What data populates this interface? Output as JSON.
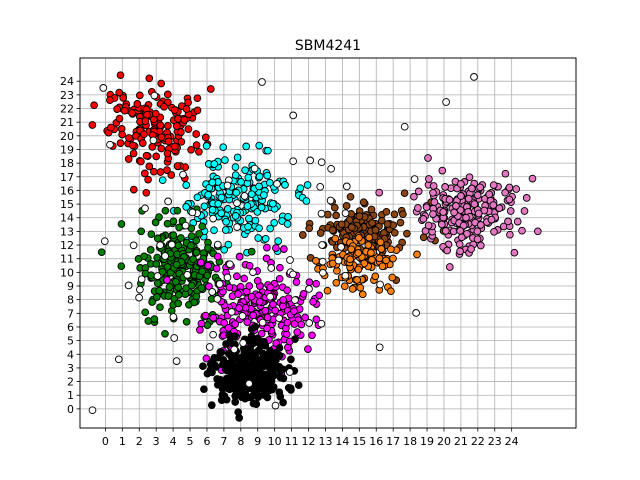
{
  "chart_data": {
    "type": "scatter",
    "title": "SBM4241",
    "xlabel": "",
    "ylabel": "",
    "xlim": [
      -1.5,
      27.8
    ],
    "ylim": [
      -1.4,
      25.7
    ],
    "x_ticks": [
      0,
      1,
      2,
      3,
      4,
      5,
      6,
      7,
      8,
      9,
      10,
      11,
      12,
      13,
      14,
      15,
      16,
      17,
      18,
      19,
      20,
      21,
      22,
      23,
      24
    ],
    "y_ticks": [
      0,
      1,
      2,
      3,
      4,
      5,
      6,
      7,
      8,
      9,
      10,
      11,
      12,
      13,
      14,
      15,
      16,
      17,
      18,
      19,
      20,
      21,
      22,
      23,
      24
    ],
    "grid": true,
    "legend": "none",
    "marker_edge_color": "#000000",
    "clusters": [
      {
        "color": "#ff0000",
        "center": [
          3.0,
          20.5
        ],
        "spread": [
          1.3,
          1.5
        ],
        "count": 170
      },
      {
        "color": "#00ffff",
        "center": [
          7.6,
          15.2
        ],
        "spread": [
          1.6,
          1.6
        ],
        "count": 200
      },
      {
        "color": "#008000",
        "center": [
          4.4,
          10.2
        ],
        "spread": [
          1.2,
          1.7
        ],
        "count": 220
      },
      {
        "color": "#ff00ff",
        "center": [
          9.2,
          7.2
        ],
        "spread": [
          1.5,
          1.8
        ],
        "count": 230
      },
      {
        "color": "#000000",
        "center": [
          8.5,
          2.6
        ],
        "spread": [
          1.1,
          1.3
        ],
        "count": 300
      },
      {
        "color": "#8b4513",
        "center": [
          15.3,
          13.1
        ],
        "spread": [
          1.4,
          1.0
        ],
        "count": 150
      },
      {
        "color": "#ff7f0e",
        "center": [
          15.0,
          10.8
        ],
        "spread": [
          1.0,
          0.9
        ],
        "count": 110
      },
      {
        "color": "#e377c2",
        "center": [
          21.2,
          14.3
        ],
        "spread": [
          1.6,
          1.3
        ],
        "count": 220
      },
      {
        "color": "#ffffff",
        "center": [
          8.0,
          12.0
        ],
        "spread": [
          5.5,
          6.0
        ],
        "count": 90
      }
    ]
  }
}
